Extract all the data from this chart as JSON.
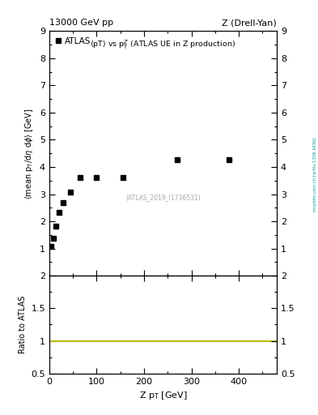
{
  "title_left": "13000 GeV pp",
  "title_right": "Z (Drell-Yan)",
  "plot_title": "<pT> vs p$_T^Z$ (ATLAS UE in Z production)",
  "legend_label": "ATLAS",
  "watermark": "(ATLAS_2019_I1736531)",
  "side_label": "mcplots.cern.ch [arXiv:1306.3436]",
  "x_data": [
    3,
    8,
    13,
    20,
    30,
    45,
    65,
    100,
    155,
    270,
    380
  ],
  "y_data": [
    1.08,
    1.38,
    1.82,
    2.32,
    2.68,
    3.07,
    3.62,
    3.62,
    3.62,
    4.27,
    4.27
  ],
  "xlabel": "Z p$_T$ [GeV]",
  "ylabel": "<mean p$_T$/d$\\eta$ d$\\phi$> [GeV]",
  "xlim": [
    0,
    480
  ],
  "ylim_main": [
    0,
    9
  ],
  "ylim_ratio": [
    0.5,
    2.0
  ],
  "ratio_line_y": 1.0,
  "ratio_line_color": "#bbbb00",
  "marker_color": "black",
  "marker_style": "s",
  "marker_size": 5,
  "background_color": "white"
}
